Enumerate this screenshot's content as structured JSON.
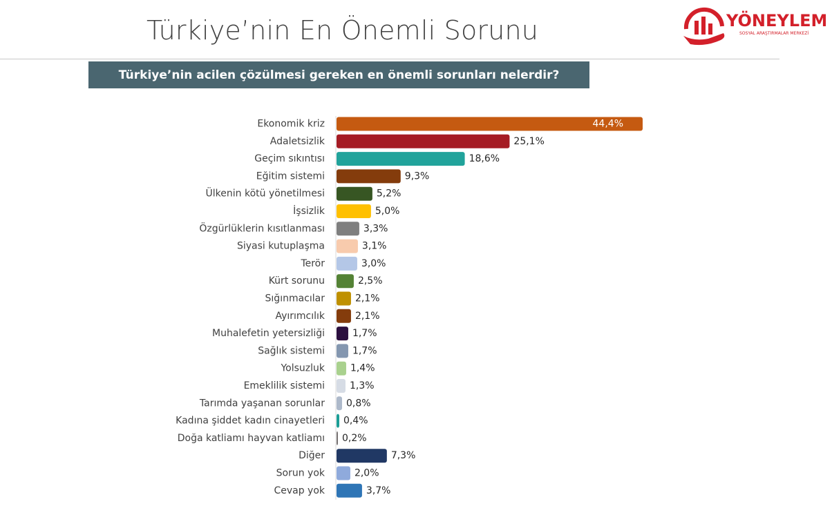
{
  "page": {
    "title": "Türkiye’nin En Önemli Sorunu",
    "question": "Türkiye’nin acilen çözülmesi gereken en önemli sorunları nelerdir?"
  },
  "logo": {
    "name": "YÖNEYLEM",
    "tagline": "SOSYAL ARAŞTIRMALAR MERKEZİ",
    "color": "#d3202a"
  },
  "chart_data": {
    "type": "bar",
    "orientation": "horizontal",
    "title": "",
    "xlabel": "",
    "ylabel": "",
    "xlim": [
      0,
      44.4
    ],
    "grid": false,
    "legend": "none",
    "categories": [
      "Ekonomik kriz",
      "Adaletsizlik",
      "Geçim sıkıntısı",
      "Eğitim sistemi",
      "Ülkenin kötü yönetilmesi",
      "İşsizlik",
      "Özgürlüklerin kısıtlanması",
      "Siyasi kutuplaşma",
      "Terör",
      "Kürt sorunu",
      "Sığınmacılar",
      "Ayırımcılık",
      "Muhalefetin yetersizliği",
      "Sağlık sistemi",
      "Yolsuzluk",
      "Emeklilik sistemi",
      "Tarımda yaşanan sorunlar",
      "Kadına şiddet kadın cinayetleri",
      "Doğa katliamı hayvan katliamı",
      "Diğer",
      "Sorun yok",
      "Cevap yok"
    ],
    "values": [
      44.4,
      25.1,
      18.6,
      9.3,
      5.2,
      5.0,
      3.3,
      3.1,
      3.0,
      2.5,
      2.1,
      2.1,
      1.7,
      1.7,
      1.4,
      1.3,
      0.8,
      0.4,
      0.2,
      7.3,
      2.0,
      3.7
    ],
    "labels": [
      "44,4%",
      "25,1%",
      "18,6%",
      "9,3%",
      "5,2%",
      "5,0%",
      "3,3%",
      "3,1%",
      "3,0%",
      "2,5%",
      "2,1%",
      "2,1%",
      "1,7%",
      "1,7%",
      "1,4%",
      "1,3%",
      "0,8%",
      "0,4%",
      "0,2%",
      "7,3%",
      "2,0%",
      "3,7%"
    ],
    "colors": [
      "#c55a11",
      "#a51c24",
      "#21a39b",
      "#843c0c",
      "#375623",
      "#ffc000",
      "#7f7f7f",
      "#f8cbad",
      "#b4c7e7",
      "#548235",
      "#bf9000",
      "#843c0c",
      "#2b0f3f",
      "#8497b0",
      "#a9d18e",
      "#d6dce5",
      "#adb9ca",
      "#1b9e96",
      "#767171",
      "#203864",
      "#8faadc",
      "#2e75b6"
    ]
  }
}
